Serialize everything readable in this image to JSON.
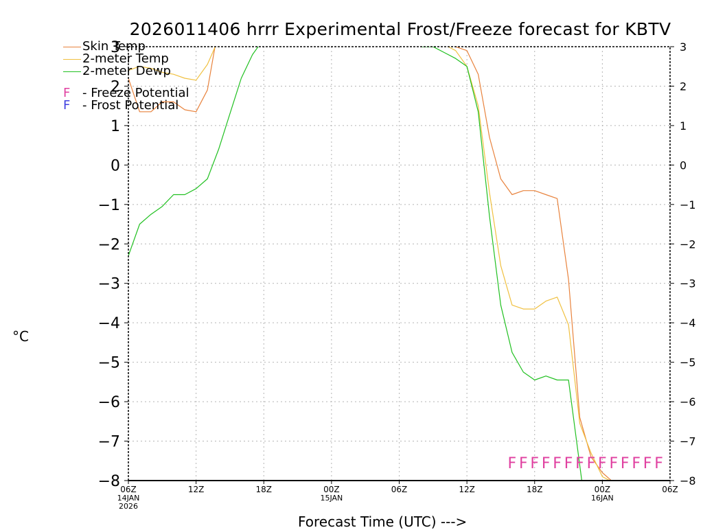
{
  "page": {
    "title": "2026011406 hrrr Experimental Frost/Freeze forecast for KBTV",
    "unit_label": "°C",
    "x_axis_label": "Forecast Time (UTC) --->"
  },
  "legend": {
    "skin": "Skin Temp",
    "temp2m": "2-meter Temp",
    "dewp2m": "2-meter Dewp",
    "freeze_letter": "F",
    "freeze_text": "- Freeze Potential",
    "frost_letter": "F",
    "frost_text": "- Frost Potential"
  },
  "colors": {
    "skin": "#e8823c",
    "temp2m": "#f0c040",
    "dewp2m": "#20c020",
    "freeze": "#e040a0",
    "frost": "#4040e0",
    "grid": "#b4b4b4"
  },
  "chart_data": {
    "type": "line",
    "title": "2026011406 hrrr Experimental Frost/Freeze forecast for KBTV",
    "xlabel": "Forecast Time (UTC) --->",
    "ylabel": "°C",
    "x_unit": "forecast hour",
    "xlim": [
      0,
      48
    ],
    "ylim": [
      -8,
      3
    ],
    "grid": true,
    "legend_position": "top-left",
    "y_ticks": [
      -8,
      -7,
      -6,
      -5,
      -4,
      -3,
      -2,
      -1,
      0,
      1,
      2,
      3
    ],
    "y_tick_labels_left": [
      "−8",
      "−7",
      "−6",
      "−5",
      "−4",
      "−3",
      "−2",
      "−1",
      "0",
      "1",
      "2",
      "3"
    ],
    "y_tick_labels_right": [
      "−8",
      "−7",
      "−6",
      "−5",
      "−4",
      "−3",
      "−2",
      "−1",
      "0",
      "1",
      "2",
      "3"
    ],
    "x_ticks": [
      {
        "hour": 0,
        "lines": [
          "06Z",
          "14JAN",
          "2026"
        ]
      },
      {
        "hour": 6,
        "lines": [
          "12Z"
        ]
      },
      {
        "hour": 12,
        "lines": [
          "18Z"
        ]
      },
      {
        "hour": 18,
        "lines": [
          "00Z",
          "15JAN"
        ]
      },
      {
        "hour": 24,
        "lines": [
          "06Z"
        ]
      },
      {
        "hour": 30,
        "lines": [
          "12Z"
        ]
      },
      {
        "hour": 36,
        "lines": [
          "18Z"
        ]
      },
      {
        "hour": 42,
        "lines": [
          "00Z",
          "16JAN"
        ]
      },
      {
        "hour": 48,
        "lines": [
          "06Z"
        ]
      }
    ],
    "series": [
      {
        "name": "Skin Temp",
        "color": "#e8823c",
        "points": [
          [
            0,
            2.2
          ],
          [
            1,
            1.35
          ],
          [
            2,
            1.35
          ],
          [
            3,
            1.6
          ],
          [
            4,
            1.6
          ],
          [
            5,
            1.4
          ],
          [
            6,
            1.35
          ],
          [
            7,
            1.9
          ],
          [
            7.8,
            3.2
          ],
          [
            25,
            3.2
          ],
          [
            28,
            3.1
          ],
          [
            29,
            3.0
          ],
          [
            30,
            2.9
          ],
          [
            31,
            2.3
          ],
          [
            32,
            0.7
          ],
          [
            33,
            -0.35
          ],
          [
            34,
            -0.75
          ],
          [
            35,
            -0.65
          ],
          [
            36,
            -0.65
          ],
          [
            37,
            -0.75
          ],
          [
            38,
            -0.85
          ],
          [
            39,
            -2.9
          ],
          [
            40,
            -6.4
          ],
          [
            41,
            -7.4
          ],
          [
            42,
            -7.8
          ],
          [
            43,
            -8.05
          ]
        ]
      },
      {
        "name": "2-meter Temp",
        "color": "#f0c040",
        "points": [
          [
            0,
            2.4
          ],
          [
            1,
            2.5
          ],
          [
            2,
            2.45
          ],
          [
            3,
            2.35
          ],
          [
            4,
            2.3
          ],
          [
            5,
            2.2
          ],
          [
            6,
            2.15
          ],
          [
            7,
            2.55
          ],
          [
            8,
            3.2
          ],
          [
            25,
            3.2
          ],
          [
            28,
            3.05
          ],
          [
            29,
            2.9
          ],
          [
            30,
            2.5
          ],
          [
            31,
            1.5
          ],
          [
            32,
            -0.7
          ],
          [
            33,
            -2.55
          ],
          [
            34,
            -3.55
          ],
          [
            35,
            -3.65
          ],
          [
            36,
            -3.65
          ],
          [
            37,
            -3.45
          ],
          [
            38,
            -3.35
          ],
          [
            39,
            -4.05
          ],
          [
            40,
            -6.55
          ],
          [
            41,
            -7.3
          ],
          [
            42,
            -7.9
          ],
          [
            43,
            -8.05
          ]
        ]
      },
      {
        "name": "2-meter Dewp",
        "color": "#20c020",
        "points": [
          [
            0,
            -2.3
          ],
          [
            1,
            -1.5
          ],
          [
            2,
            -1.25
          ],
          [
            3,
            -1.05
          ],
          [
            4,
            -0.75
          ],
          [
            5,
            -0.75
          ],
          [
            6,
            -0.6
          ],
          [
            7,
            -0.35
          ],
          [
            8,
            0.4
          ],
          [
            9,
            1.3
          ],
          [
            10,
            2.2
          ],
          [
            11,
            2.8
          ],
          [
            12,
            3.2
          ],
          [
            25,
            3.2
          ],
          [
            26,
            3.0
          ],
          [
            27,
            3.0
          ],
          [
            28,
            2.85
          ],
          [
            29,
            2.7
          ],
          [
            30,
            2.5
          ],
          [
            31,
            1.35
          ],
          [
            32,
            -1.3
          ],
          [
            33,
            -3.55
          ],
          [
            34,
            -4.75
          ],
          [
            35,
            -5.25
          ],
          [
            36,
            -5.45
          ],
          [
            37,
            -5.35
          ],
          [
            38,
            -5.45
          ],
          [
            39,
            -5.45
          ],
          [
            40.2,
            -8.05
          ]
        ]
      }
    ],
    "freeze_potential": {
      "letter": "F",
      "hours": [
        34,
        35,
        36,
        37,
        38,
        39,
        40,
        41,
        42,
        43,
        44,
        45,
        46,
        47
      ],
      "y_level": -7.55
    },
    "frost_potential": {
      "letter": "F",
      "hours": []
    }
  }
}
